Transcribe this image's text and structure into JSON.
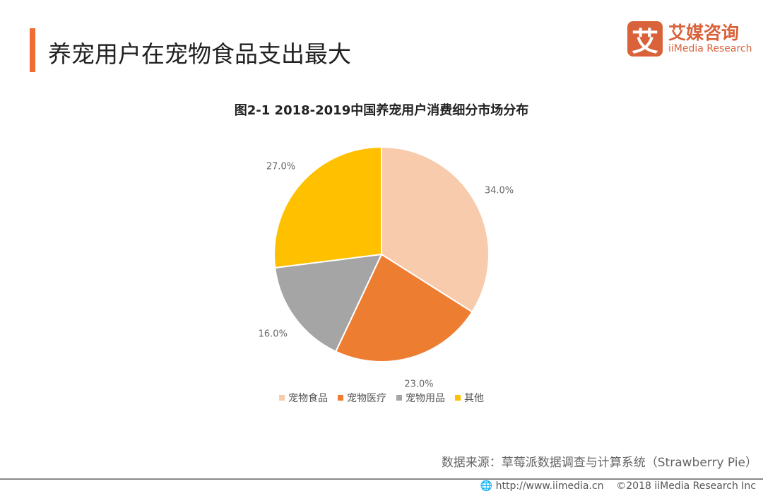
{
  "header": {
    "title": "养宠用户在宠物食品支出最大",
    "logo_cn": "艾媒咨询",
    "logo_en": "iiMedia Research",
    "logo_mark": "艾",
    "accent": "#ed6d35"
  },
  "chart_data": {
    "type": "pie",
    "title": "图2-1 2018-2019中国养宠用户消费细分市场分布",
    "categories": [
      "宠物食品",
      "宠物医疗",
      "宠物用品",
      "其他"
    ],
    "values": [
      34.0,
      23.0,
      16.0,
      27.0
    ],
    "labels": [
      "34.0%",
      "23.0%",
      "16.0%",
      "27.0%"
    ],
    "colors": [
      "#f7cbab",
      "#ed7d31",
      "#a5a5a5",
      "#ffc000"
    ],
    "legend_position": "bottom"
  },
  "source": "数据来源：草莓派数据调查与计算系统（Strawberry Pie）",
  "footer": {
    "url": "http://www.iimedia.cn",
    "copyright": "©2018  iiMedia Research  Inc"
  }
}
